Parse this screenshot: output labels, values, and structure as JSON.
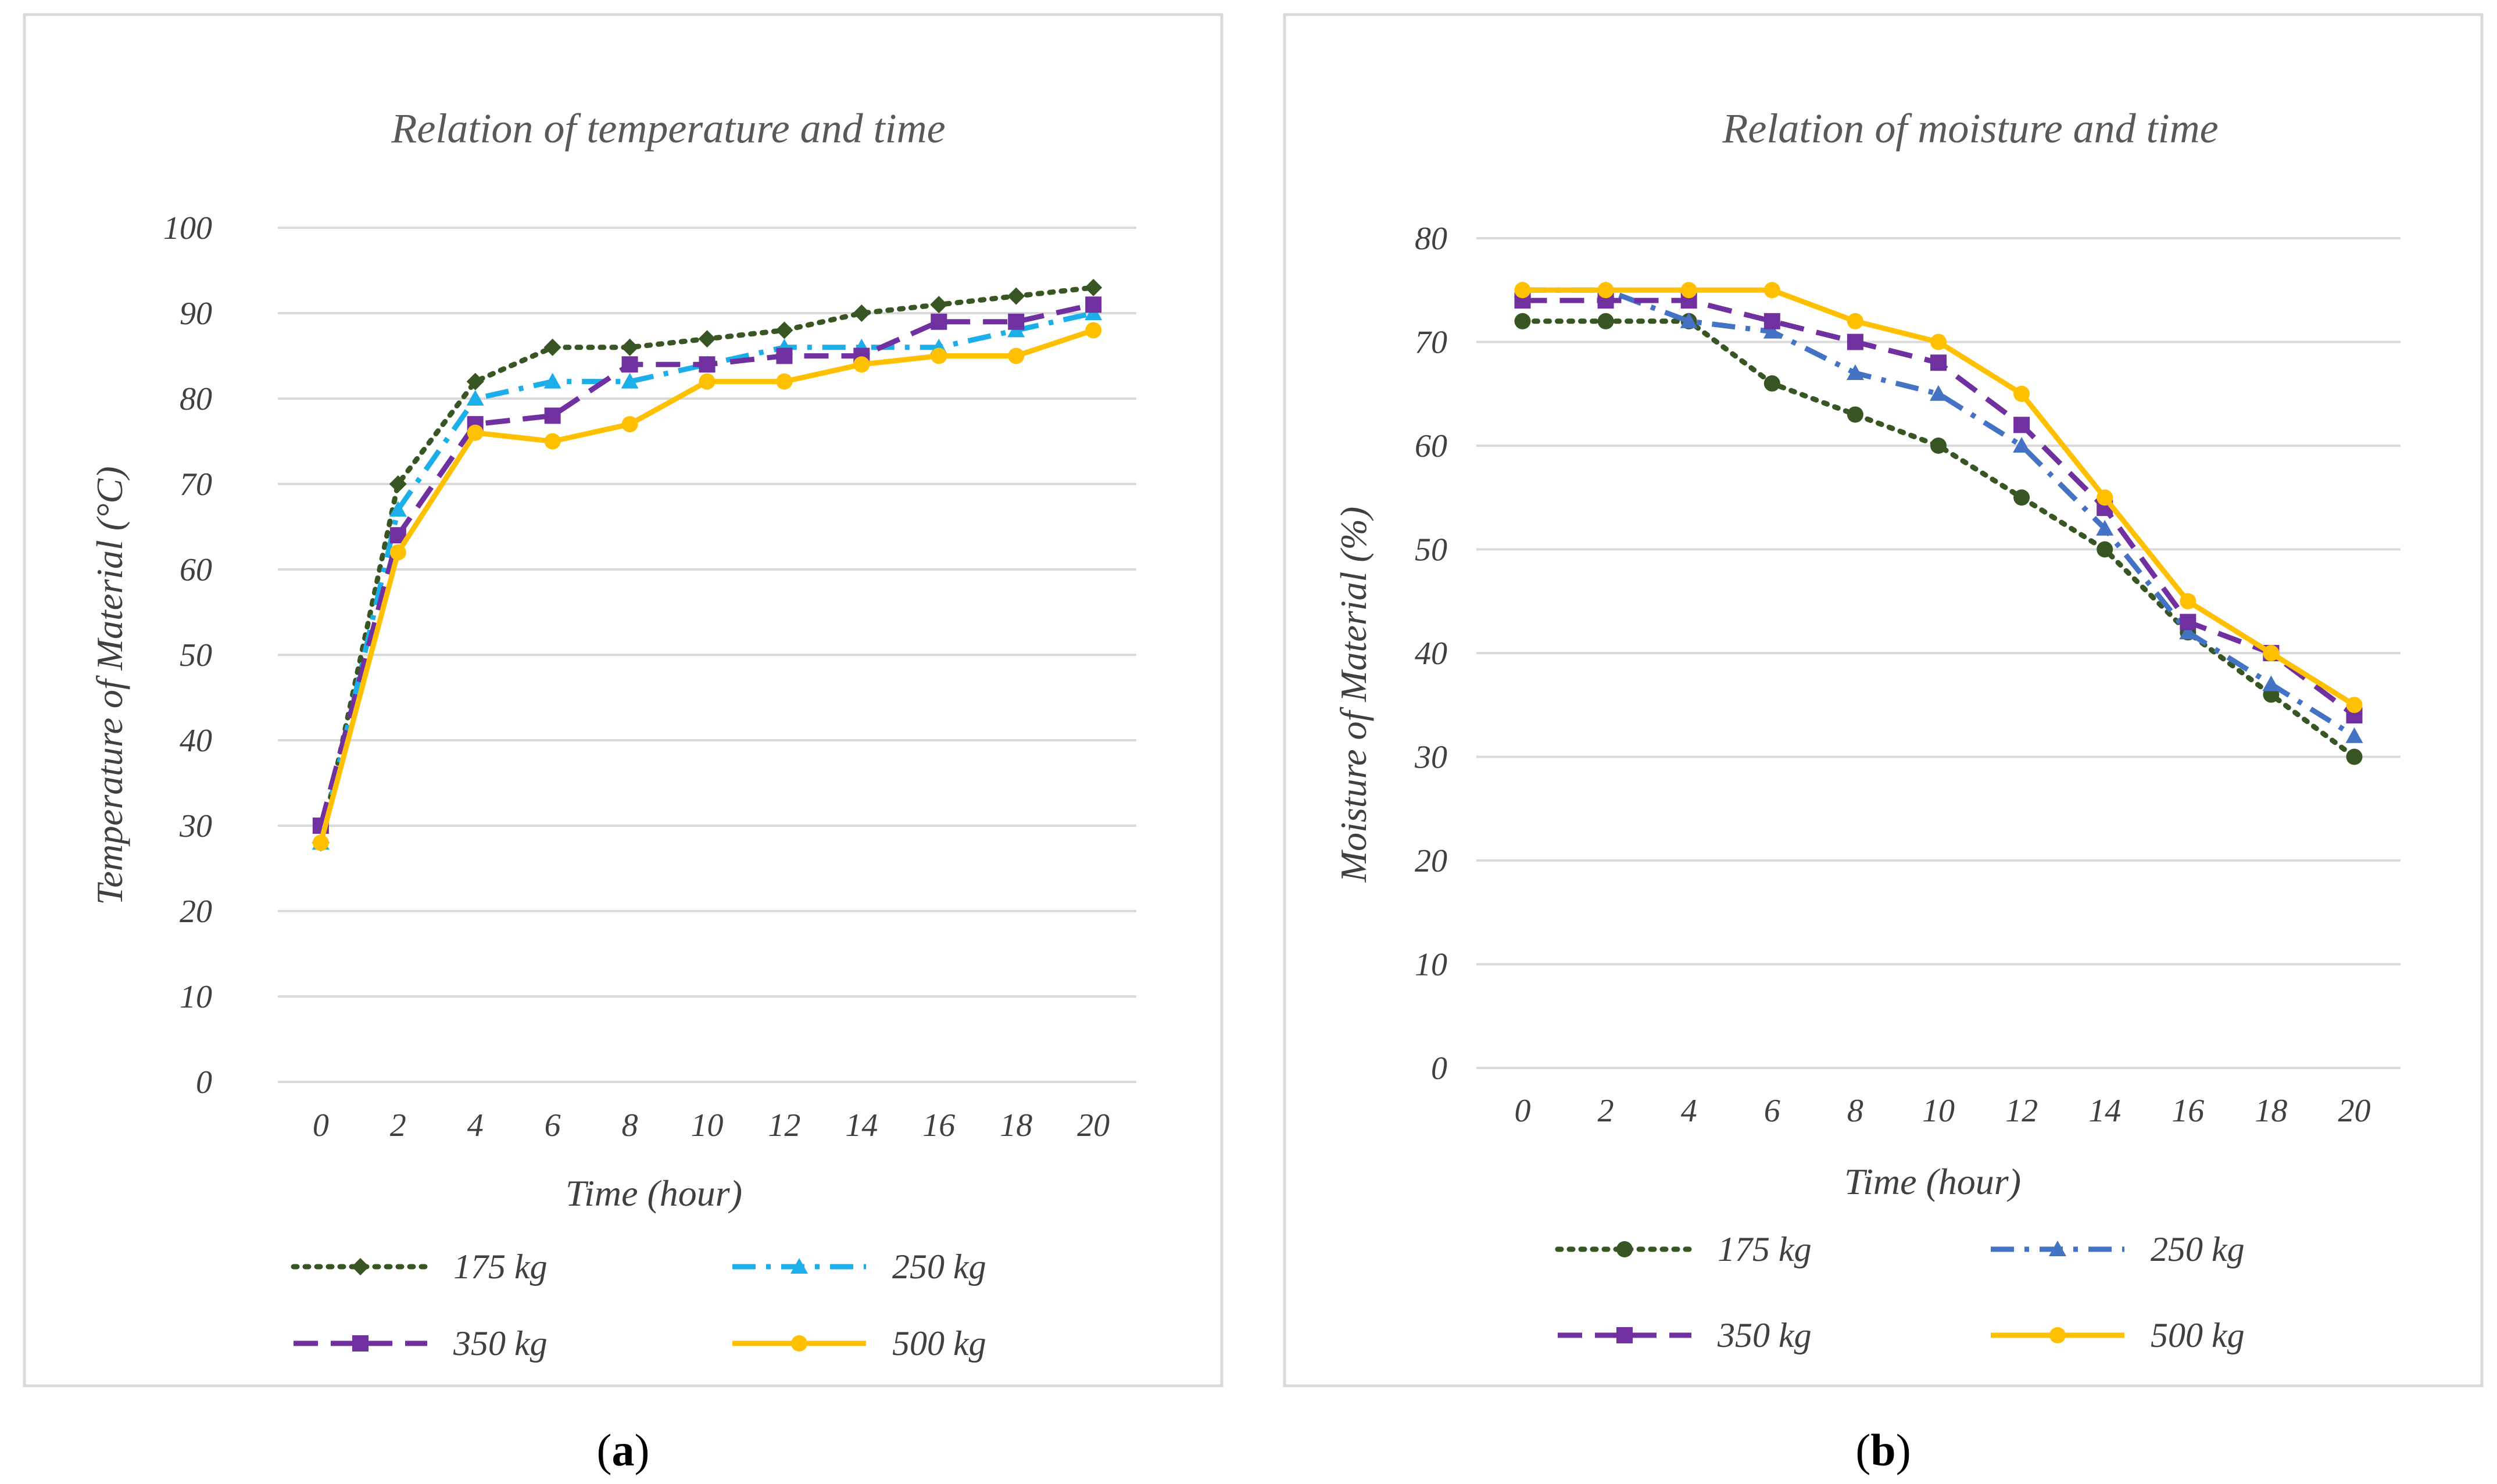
{
  "chart_data": [
    {
      "type": "line",
      "caption_letter": "a",
      "title": "Relation of temperature and time",
      "xlabel": "Time (hour)",
      "ylabel": "Temperature of Material (°C)",
      "x": [
        0,
        2,
        4,
        6,
        8,
        10,
        12,
        14,
        16,
        18,
        20
      ],
      "ylim": [
        0,
        100
      ],
      "yticks": [
        0,
        10,
        20,
        30,
        40,
        50,
        60,
        70,
        80,
        90,
        100
      ],
      "grid": true,
      "legend": "bottom",
      "series": [
        {
          "name": "175 kg",
          "color": "#375623",
          "marker": "diamond",
          "dash": "dot",
          "values": [
            28,
            70,
            82,
            86,
            86,
            87,
            88,
            90,
            91,
            92,
            93
          ]
        },
        {
          "name": "250 kg",
          "color": "#1CAEE8",
          "marker": "triangle",
          "dash": "dashdot",
          "values": [
            28,
            67,
            80,
            82,
            82,
            84,
            86,
            86,
            86,
            88,
            90
          ]
        },
        {
          "name": "350 kg",
          "color": "#7030A0",
          "marker": "square",
          "dash": "dash",
          "values": [
            30,
            64,
            77,
            78,
            84,
            84,
            85,
            85,
            89,
            89,
            91
          ]
        },
        {
          "name": "500 kg",
          "color": "#FFC000",
          "marker": "circle",
          "dash": "solid",
          "values": [
            28,
            62,
            76,
            75,
            77,
            82,
            82,
            84,
            85,
            85,
            88
          ]
        }
      ]
    },
    {
      "type": "line",
      "caption_letter": "b",
      "title": "Relation of moisture and time",
      "xlabel": "Time (hour)",
      "ylabel": "Moisture of Material (%)",
      "x": [
        0,
        2,
        4,
        6,
        8,
        10,
        12,
        14,
        16,
        18,
        20
      ],
      "ylim": [
        0,
        80
      ],
      "yticks": [
        0,
        10,
        20,
        30,
        40,
        50,
        60,
        70,
        80
      ],
      "grid": true,
      "legend": "bottom",
      "series": [
        {
          "name": "175 kg",
          "color": "#375623",
          "marker": "circle",
          "dash": "dot",
          "values": [
            72,
            72,
            72,
            66,
            63,
            60,
            55,
            50,
            42,
            36,
            30
          ]
        },
        {
          "name": "250 kg",
          "color": "#4472C4",
          "marker": "triangle",
          "dash": "dashdot",
          "values": [
            75,
            75,
            72,
            71,
            67,
            65,
            60,
            52,
            42,
            37,
            32
          ]
        },
        {
          "name": "350 kg",
          "color": "#7030A0",
          "marker": "square",
          "dash": "dash",
          "values": [
            74,
            74,
            74,
            72,
            70,
            68,
            62,
            54,
            43,
            40,
            34
          ]
        },
        {
          "name": "500 kg",
          "color": "#FFC000",
          "marker": "circle",
          "dash": "solid",
          "values": [
            75,
            75,
            75,
            75,
            72,
            70,
            65,
            55,
            45,
            40,
            35
          ]
        }
      ]
    }
  ]
}
